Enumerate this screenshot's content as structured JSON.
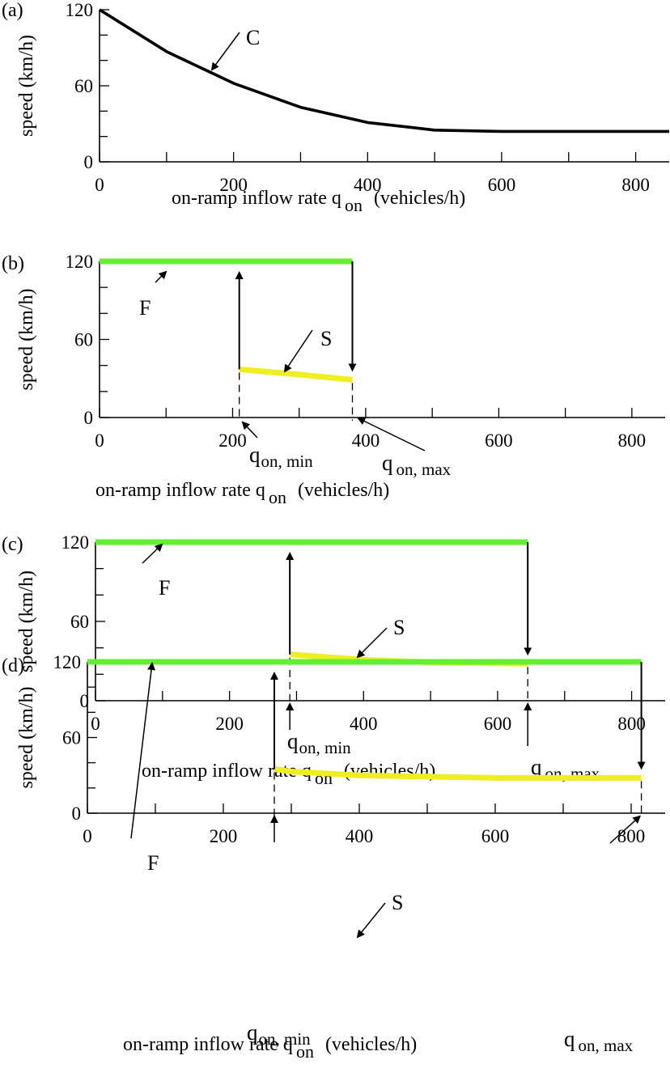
{
  "panels": [
    {
      "panel_label": "(a)",
      "ylabel": "speed (km/h)",
      "xlabel_main": "on-ramp inflow rate q",
      "xlabel_sub": "on",
      "xlabel_units": "(vehicles/h)",
      "xticks": [
        "0",
        "200",
        "400",
        "600",
        "800"
      ],
      "yticks": [
        "0",
        "60",
        "120"
      ]
    },
    {
      "panel_label": "(b)",
      "ylabel": "speed (km/h)",
      "xlabel_main": "on-ramp inflow rate q",
      "xlabel_sub": "on",
      "xlabel_units": "(vehicles/h)",
      "xticks": [
        "0",
        "200",
        "400",
        "600",
        "800"
      ],
      "yticks": [
        "0",
        "60",
        "120"
      ],
      "qmin_main": "q",
      "qmin_sub": "on, min",
      "qmax_main": "q",
      "qmax_sub": "on, max"
    },
    {
      "panel_label": "(c)",
      "ylabel": "speed (km/h)",
      "xlabel_main": "on-ramp inflow rate q",
      "xlabel_sub": "on",
      "xlabel_units": "(vehicles/h)",
      "xticks": [
        "0",
        "200",
        "400",
        "600",
        "800"
      ],
      "yticks": [
        "0",
        "60",
        "120"
      ],
      "qmin_main": "q",
      "qmin_sub": "on, min",
      "qmax_main": "q",
      "qmax_sub": "on, max"
    },
    {
      "panel_label": "(d)",
      "ylabel": "speed (km/h)",
      "xlabel_main": "on-ramp inflow rate q",
      "xlabel_sub": "on",
      "xlabel_units": "(vehicles/h)",
      "xticks": [
        "0",
        "200",
        "400",
        "600",
        "800"
      ],
      "yticks": [
        "0",
        "60",
        "120"
      ],
      "qmin_main": "q",
      "qmin_sub": "on, min",
      "qmax_main": "q",
      "qmax_sub": "on, max"
    }
  ],
  "chart_data": [
    {
      "type": "line",
      "panel": "(a)",
      "xlabel": "on-ramp inflow rate q on (vehicles/h)",
      "ylabel": "speed (km/h)",
      "xlim": [
        0,
        850
      ],
      "ylim": [
        0,
        120
      ],
      "series": [
        {
          "name": "C",
          "color": "#000000",
          "x": [
            0,
            100,
            200,
            300,
            400,
            500,
            600,
            700,
            800,
            850
          ],
          "y": [
            120,
            87,
            62,
            43,
            31,
            25,
            24,
            24,
            24,
            24
          ]
        }
      ]
    },
    {
      "type": "line",
      "panel": "(b)",
      "xlabel": "on-ramp inflow rate q on (vehicles/h)",
      "ylabel": "speed (km/h)",
      "xlim": [
        0,
        850
      ],
      "ylim": [
        0,
        120
      ],
      "series": [
        {
          "name": "F",
          "color": "#66ee33",
          "x": [
            0,
            380
          ],
          "y": [
            120,
            120
          ]
        },
        {
          "name": "S",
          "color": "#eeee22",
          "x": [
            210,
            300,
            380
          ],
          "y": [
            37,
            33,
            29
          ]
        }
      ],
      "q_on_min": 210,
      "q_on_max": 380
    },
    {
      "type": "line",
      "panel": "(c)",
      "xlabel": "on-ramp inflow rate q on (vehicles/h)",
      "ylabel": "speed (km/h)",
      "xlim": [
        0,
        850
      ],
      "ylim": [
        0,
        120
      ],
      "series": [
        {
          "name": "F",
          "color": "#66ee33",
          "x": [
            0,
            645
          ],
          "y": [
            120,
            120
          ]
        },
        {
          "name": "S",
          "color": "#eeee22",
          "x": [
            290,
            400,
            500,
            645
          ],
          "y": [
            35,
            31,
            29,
            28
          ]
        }
      ],
      "q_on_min": 290,
      "q_on_max": 645
    },
    {
      "type": "line",
      "panel": "(d)",
      "xlabel": "on-ramp inflow rate q on (vehicles/h)",
      "ylabel": "speed (km/h)",
      "xlim": [
        0,
        850
      ],
      "ylim": [
        0,
        120
      ],
      "series": [
        {
          "name": "F",
          "color": "#66ee33",
          "x": [
            0,
            815
          ],
          "y": [
            120,
            120
          ]
        },
        {
          "name": "S",
          "color": "#eeee22",
          "x": [
            275,
            300,
            400,
            500,
            600,
            700,
            815
          ],
          "y": [
            35,
            33,
            30,
            29,
            28,
            28,
            28
          ]
        }
      ],
      "q_on_min": 275,
      "q_on_max": 815
    }
  ]
}
